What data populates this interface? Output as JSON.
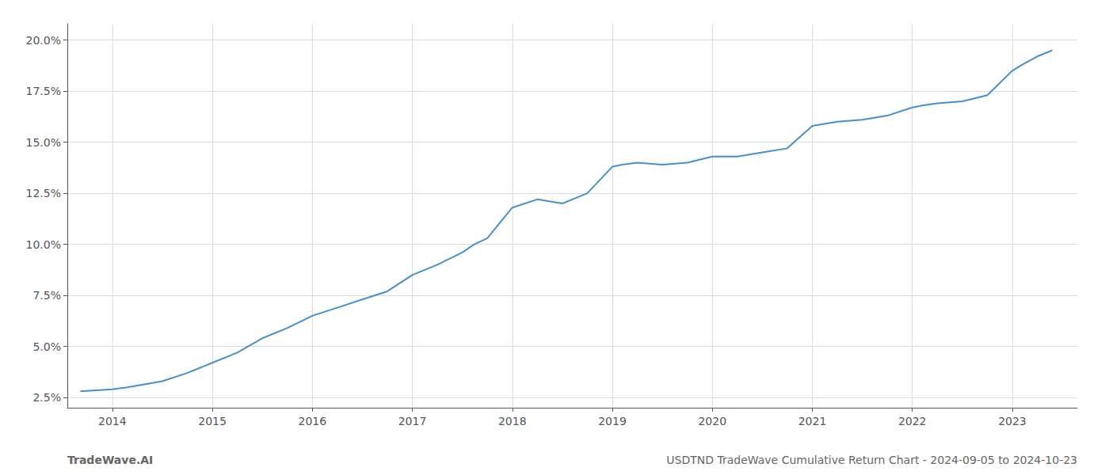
{
  "chart_data": {
    "type": "line",
    "x": [
      2013.68,
      2014.0,
      2014.15,
      2014.5,
      2014.75,
      2015.0,
      2015.25,
      2015.5,
      2015.75,
      2016.0,
      2016.25,
      2016.5,
      2016.75,
      2017.0,
      2017.25,
      2017.5,
      2017.62,
      2017.75,
      2018.0,
      2018.25,
      2018.5,
      2018.75,
      2019.0,
      2019.1,
      2019.25,
      2019.5,
      2019.75,
      2020.0,
      2020.25,
      2020.5,
      2020.75,
      2021.0,
      2021.25,
      2021.5,
      2021.75,
      2022.0,
      2022.1,
      2022.25,
      2022.5,
      2022.75,
      2023.0,
      2023.1,
      2023.25,
      2023.4
    ],
    "values": [
      0.028,
      0.029,
      0.03,
      0.033,
      0.037,
      0.042,
      0.047,
      0.054,
      0.059,
      0.065,
      0.069,
      0.073,
      0.077,
      0.085,
      0.09,
      0.096,
      0.1,
      0.103,
      0.118,
      0.122,
      0.12,
      0.125,
      0.138,
      0.139,
      0.14,
      0.139,
      0.14,
      0.143,
      0.143,
      0.145,
      0.147,
      0.158,
      0.16,
      0.161,
      0.163,
      0.167,
      0.168,
      0.169,
      0.17,
      0.173,
      0.185,
      0.188,
      0.192,
      0.195
    ],
    "color": "#4a8fc2",
    "xlim": [
      2013.55,
      2023.65
    ],
    "ylim": [
      0.02,
      0.208
    ],
    "xticks": [
      2014,
      2015,
      2016,
      2017,
      2018,
      2019,
      2020,
      2021,
      2022,
      2023
    ],
    "yticks": [
      {
        "value": 0.025,
        "label": "2.5%"
      },
      {
        "value": 0.05,
        "label": "5.0%"
      },
      {
        "value": 0.075,
        "label": "7.5%"
      },
      {
        "value": 0.1,
        "label": "10.0%"
      },
      {
        "value": 0.125,
        "label": "12.5%"
      },
      {
        "value": 0.15,
        "label": "15.0%"
      },
      {
        "value": 0.175,
        "label": "17.5%"
      },
      {
        "value": 0.2,
        "label": "20.0%"
      }
    ],
    "grid": true,
    "annotations": [
      "TradeWave.AI",
      "USDTND TradeWave Cumulative Return Chart - 2024-09-05 to 2024-10-23"
    ]
  }
}
